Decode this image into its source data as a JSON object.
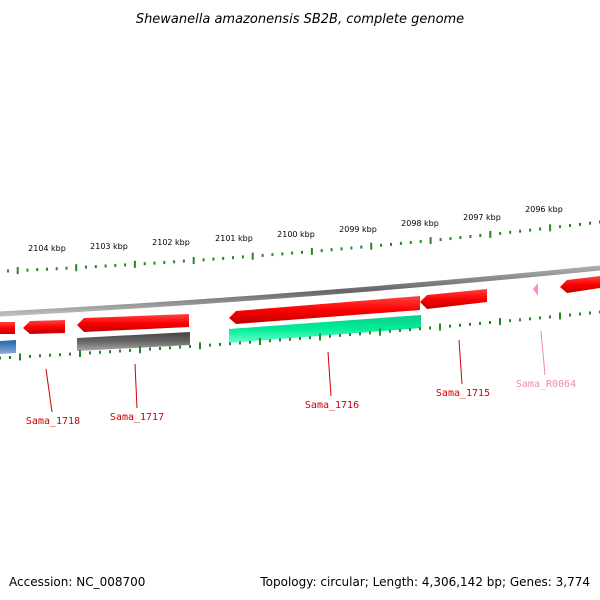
{
  "title": "Shewanella amazonensis SB2B, complete genome",
  "footer": {
    "accession": "Accession: NC_008700",
    "summary": "Topology: circular; Length: 4,306,142 bp; Genes: 3,774"
  },
  "kbp_labels": [
    "2104 kbp",
    "2103 kbp",
    "2102 kbp",
    "2101 kbp",
    "2100 kbp",
    "2099 kbp",
    "2098 kbp",
    "2097 kbp",
    "2096 kbp"
  ],
  "gene_labels": [
    {
      "text": "Sama_1718",
      "color": "#cc0000"
    },
    {
      "text": "Sama_1717",
      "color": "#cc0000"
    },
    {
      "text": "Sama_1716",
      "color": "#cc0000"
    },
    {
      "text": "Sama_1715",
      "color": "#cc0000"
    },
    {
      "text": "Sama_R0064",
      "color": "#ee88b0"
    }
  ],
  "colors": {
    "cds_forward": "#ff0000",
    "cds_reverse": "#ff0000",
    "rna": "#00ee99",
    "pseudo": "#666666",
    "trna": "#ff88cc",
    "other": "#3377bb",
    "backbone": "#888888",
    "ticks": "#228822"
  }
}
